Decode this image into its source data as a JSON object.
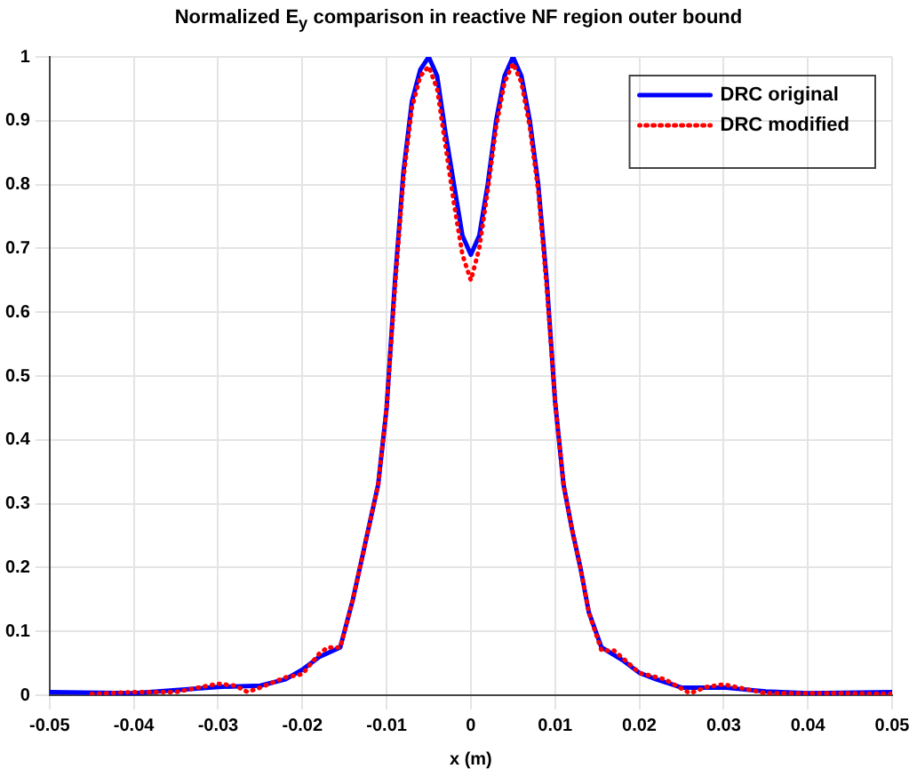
{
  "chart_data": {
    "type": "line",
    "title": "Normalized E$_{y}$ comparison in reactive NF region outer bound",
    "xlabel": "x (m)",
    "xlim": [
      -0.05,
      0.05
    ],
    "xticks": [
      -0.05,
      -0.04,
      -0.03,
      -0.02,
      -0.01,
      0,
      0.01,
      0.02,
      0.03,
      0.04,
      0.05
    ],
    "ylim": [
      0,
      1
    ],
    "yticks": [
      0,
      0.1,
      0.2,
      0.3,
      0.4,
      0.5,
      0.6,
      0.7,
      0.8,
      0.9,
      1
    ],
    "grid": true,
    "legend": "top right",
    "series": [
      {
        "name": "DRC original",
        "color": "#0000ff",
        "line_style": "solid",
        "x": [
          -0.05,
          -0.04,
          -0.035,
          -0.03,
          -0.025,
          -0.022,
          -0.02,
          -0.018,
          -0.0155,
          -0.014,
          -0.012,
          -0.011,
          -0.01,
          -0.009,
          -0.008,
          -0.007,
          -0.006,
          -0.005,
          -0.004,
          -0.003,
          -0.002,
          -0.001,
          0,
          0.001,
          0.002,
          0.003,
          0.004,
          0.005,
          0.006,
          0.007,
          0.008,
          0.009,
          0.01,
          0.011,
          0.012,
          0.013,
          0.014,
          0.0155,
          0.018,
          0.02,
          0.022,
          0.025,
          0.03,
          0.035,
          0.04,
          0.05
        ],
        "values": [
          0.005,
          0.003,
          0.008,
          0.013,
          0.015,
          0.025,
          0.04,
          0.06,
          0.075,
          0.15,
          0.27,
          0.33,
          0.45,
          0.65,
          0.82,
          0.93,
          0.98,
          1.0,
          0.97,
          0.88,
          0.8,
          0.72,
          0.69,
          0.72,
          0.8,
          0.9,
          0.97,
          1.0,
          0.97,
          0.9,
          0.8,
          0.65,
          0.46,
          0.33,
          0.26,
          0.2,
          0.13,
          0.075,
          0.055,
          0.035,
          0.025,
          0.012,
          0.012,
          0.006,
          0.003,
          0.005
        ]
      },
      {
        "name": "DRC modified",
        "color": "#ff0000",
        "line_style": "dotted",
        "x": [
          -0.045,
          -0.04,
          -0.035,
          -0.03,
          -0.028,
          -0.0265,
          -0.025,
          -0.022,
          -0.02,
          -0.018,
          -0.017,
          -0.0155,
          -0.014,
          -0.012,
          -0.011,
          -0.01,
          -0.009,
          -0.008,
          -0.007,
          -0.006,
          -0.005,
          -0.004,
          -0.003,
          -0.002,
          -0.001,
          0,
          0.001,
          0.002,
          0.003,
          0.004,
          0.005,
          0.006,
          0.007,
          0.008,
          0.009,
          0.01,
          0.011,
          0.012,
          0.013,
          0.014,
          0.0155,
          0.017,
          0.02,
          0.023,
          0.026,
          0.028,
          0.03,
          0.035,
          0.04,
          0.045,
          0.05
        ],
        "values": [
          0.002,
          0.005,
          0.005,
          0.018,
          0.015,
          0.005,
          0.012,
          0.028,
          0.033,
          0.065,
          0.075,
          0.075,
          0.15,
          0.27,
          0.33,
          0.45,
          0.64,
          0.81,
          0.92,
          0.97,
          0.985,
          0.95,
          0.86,
          0.77,
          0.69,
          0.65,
          0.7,
          0.79,
          0.89,
          0.96,
          0.99,
          0.96,
          0.89,
          0.79,
          0.64,
          0.46,
          0.33,
          0.26,
          0.2,
          0.13,
          0.07,
          0.07,
          0.035,
          0.025,
          0.003,
          0.013,
          0.017,
          0.003,
          0.003,
          0.003,
          0.002
        ]
      }
    ]
  }
}
